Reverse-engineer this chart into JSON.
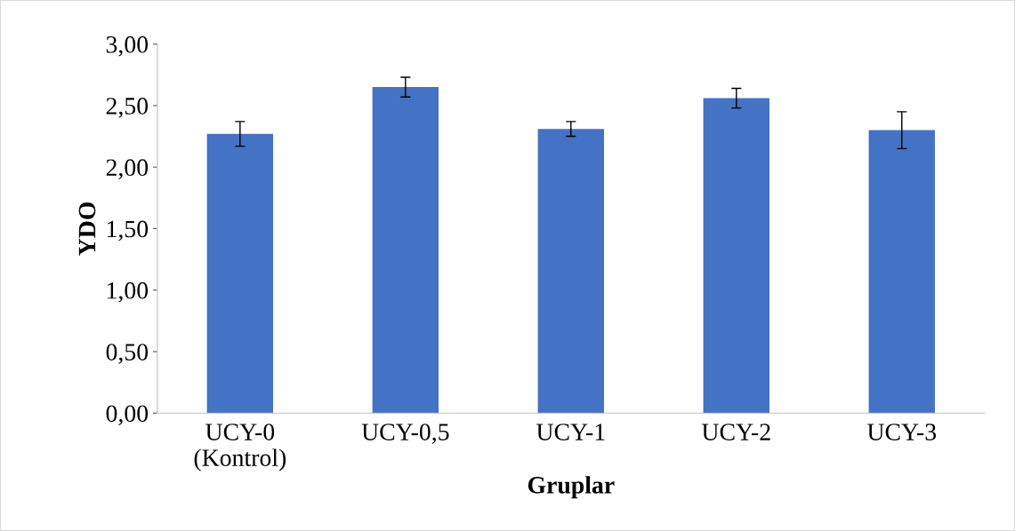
{
  "chart_data": {
    "type": "bar",
    "xlabel": "Gruplar",
    "ylabel": "YDO",
    "categories": [
      "UCY-0\n(Kontrol)",
      "UCY-0,5",
      "UCY-1",
      "UCY-2",
      "UCY-3"
    ],
    "values": [
      2.27,
      2.65,
      2.31,
      2.56,
      2.3
    ],
    "errors": [
      0.1,
      0.08,
      0.06,
      0.08,
      0.15
    ],
    "color": "#4472c4",
    "ylim": [
      0,
      3
    ],
    "yticks": [
      {
        "value": 0,
        "label": "0,00"
      },
      {
        "value": 0.5,
        "label": "0,50"
      },
      {
        "value": 1,
        "label": "1,00"
      },
      {
        "value": 1.5,
        "label": "1,50"
      },
      {
        "value": 2,
        "label": "2,00"
      },
      {
        "value": 2.5,
        "label": "2,50"
      },
      {
        "value": 3,
        "label": "3,00"
      }
    ],
    "grid": false,
    "legend": false
  }
}
